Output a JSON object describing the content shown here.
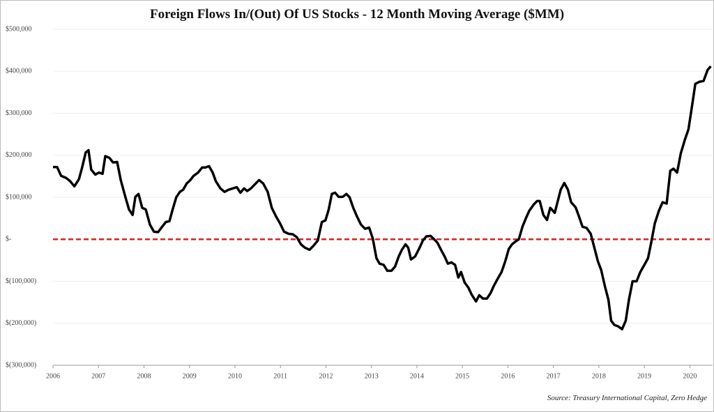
{
  "chart_data": {
    "type": "line",
    "title": "Foreign Flows In/(Out) Of US Stocks  - 12 Month Moving Average ($MM)",
    "source": "Source: Treasury International Capital, Zero Hedge",
    "x": [
      2006.0,
      2006.09,
      2006.18,
      2006.29,
      2006.38,
      2006.47,
      2006.57,
      2006.64,
      2006.72,
      2006.78,
      2006.84,
      2006.93,
      2007.01,
      2007.09,
      2007.15,
      2007.24,
      2007.32,
      2007.41,
      2007.49,
      2007.58,
      2007.67,
      2007.75,
      2007.81,
      2007.88,
      2007.96,
      2008.04,
      2008.13,
      2008.22,
      2008.31,
      2008.4,
      2008.48,
      2008.56,
      2008.63,
      2008.71,
      2008.79,
      2008.86,
      2008.94,
      2009.02,
      2009.09,
      2009.19,
      2009.28,
      2009.35,
      2009.43,
      2009.51,
      2009.58,
      2009.68,
      2009.77,
      2009.86,
      2009.95,
      2010.04,
      2010.12,
      2010.2,
      2010.27,
      2010.35,
      2010.44,
      2010.53,
      2010.62,
      2010.72,
      2010.81,
      2010.9,
      2010.99,
      2011.08,
      2011.18,
      2011.27,
      2011.36,
      2011.45,
      2011.54,
      2011.64,
      2011.73,
      2011.82,
      2011.91,
      2011.99,
      2012.06,
      2012.13,
      2012.2,
      2012.28,
      2012.37,
      2012.45,
      2012.52,
      2012.6,
      2012.68,
      2012.77,
      2012.86,
      2012.95,
      2013.03,
      2013.11,
      2013.18,
      2013.27,
      2013.35,
      2013.44,
      2013.52,
      2013.6,
      2013.67,
      2013.75,
      2013.81,
      2013.87,
      2013.96,
      2014.06,
      2014.13,
      2014.21,
      2014.3,
      2014.38,
      2014.45,
      2014.53,
      2014.61,
      2014.68,
      2014.76,
      2014.84,
      2014.91,
      2014.97,
      2015.05,
      2015.13,
      2015.2,
      2015.3,
      2015.37,
      2015.45,
      2015.54,
      2015.62,
      2015.69,
      2015.77,
      2015.86,
      2015.94,
      2016.02,
      2016.09,
      2016.17,
      2016.24,
      2016.32,
      2016.4,
      2016.47,
      2016.57,
      2016.64,
      2016.7,
      2016.78,
      2016.86,
      2016.93,
      2017.03,
      2017.09,
      2017.16,
      2017.24,
      2017.32,
      2017.39,
      2017.49,
      2017.56,
      2017.64,
      2017.73,
      2017.82,
      2017.9,
      2017.98,
      2018.05,
      2018.13,
      2018.21,
      2018.27,
      2018.34,
      2018.42,
      2018.51,
      2018.59,
      2018.66,
      2018.74,
      2018.83,
      2018.91,
      2019.0,
      2019.08,
      2019.15,
      2019.23,
      2019.32,
      2019.4,
      2019.49,
      2019.57,
      2019.64,
      2019.72,
      2019.8,
      2019.89,
      2019.97,
      2020.04,
      2020.12,
      2020.21,
      2020.3,
      2020.39,
      2020.46
    ],
    "series": [
      {
        "name": "12 Month Moving Average",
        "color": "#000000",
        "values": [
          172000,
          172000,
          151000,
          146000,
          138000,
          126000,
          143000,
          171000,
          207000,
          212000,
          166000,
          154000,
          159000,
          156000,
          198000,
          194000,
          183000,
          184000,
          141000,
          105000,
          71000,
          58000,
          101000,
          108000,
          75000,
          71000,
          35000,
          18000,
          17000,
          30000,
          41000,
          43000,
          71000,
          100000,
          113000,
          118000,
          133000,
          141000,
          151000,
          159000,
          171000,
          171000,
          174000,
          159000,
          138000,
          121000,
          113000,
          118000,
          121000,
          124000,
          111000,
          121000,
          115000,
          121000,
          131000,
          141000,
          133000,
          113000,
          75000,
          55000,
          38000,
          18000,
          13000,
          12000,
          5000,
          -12000,
          -20000,
          -25000,
          -15000,
          -3000,
          41000,
          45000,
          71000,
          108000,
          111000,
          101000,
          101000,
          108000,
          100000,
          75000,
          55000,
          35000,
          25000,
          28000,
          2000,
          -45000,
          -58000,
          -61000,
          -75000,
          -75000,
          -65000,
          -41000,
          -25000,
          -12000,
          -20000,
          -48000,
          -41000,
          -20000,
          -3000,
          7000,
          8000,
          0,
          -8000,
          -25000,
          -41000,
          -58000,
          -55000,
          -61000,
          -91000,
          -78000,
          -103000,
          -115000,
          -131000,
          -148000,
          -133000,
          -141000,
          -141000,
          -128000,
          -111000,
          -95000,
          -78000,
          -53000,
          -23000,
          -12000,
          -5000,
          0,
          30000,
          51000,
          68000,
          83000,
          91000,
          91000,
          58000,
          46000,
          75000,
          63000,
          88000,
          118000,
          134000,
          118000,
          88000,
          76000,
          55000,
          30000,
          27000,
          13000,
          -20000,
          -53000,
          -73000,
          -111000,
          -144000,
          -194000,
          -204000,
          -207000,
          -214000,
          -194000,
          -144000,
          -100000,
          -100000,
          -78000,
          -61000,
          -45000,
          -8000,
          38000,
          68000,
          88000,
          85000,
          163000,
          168000,
          159000,
          204000,
          237000,
          262000,
          312000,
          370000,
          375000,
          377000,
          403000,
          412000
        ]
      }
    ],
    "xlim": [
      2006,
      2020.5
    ],
    "xticks": [
      2006,
      2007,
      2008,
      2009,
      2010,
      2011,
      2012,
      2013,
      2014,
      2015,
      2016,
      2017,
      2018,
      2019,
      2020
    ],
    "ylim": [
      -300000,
      500000
    ],
    "yticks": [
      {
        "value": -300000,
        "label": "$(300,000)"
      },
      {
        "value": -200000,
        "label": "$(200,000)"
      },
      {
        "value": -100000,
        "label": "$(100,000)"
      },
      {
        "value": 0,
        "label": "$-"
      },
      {
        "value": 100000,
        "label": "$100,000"
      },
      {
        "value": 200000,
        "label": "$200,000"
      },
      {
        "value": 300000,
        "label": "$300,000"
      },
      {
        "value": 400000,
        "label": "$400,000"
      },
      {
        "value": 500000,
        "label": "$500,000"
      }
    ],
    "grid": true,
    "reference_line": {
      "value": 0,
      "color": "#e02020"
    }
  }
}
